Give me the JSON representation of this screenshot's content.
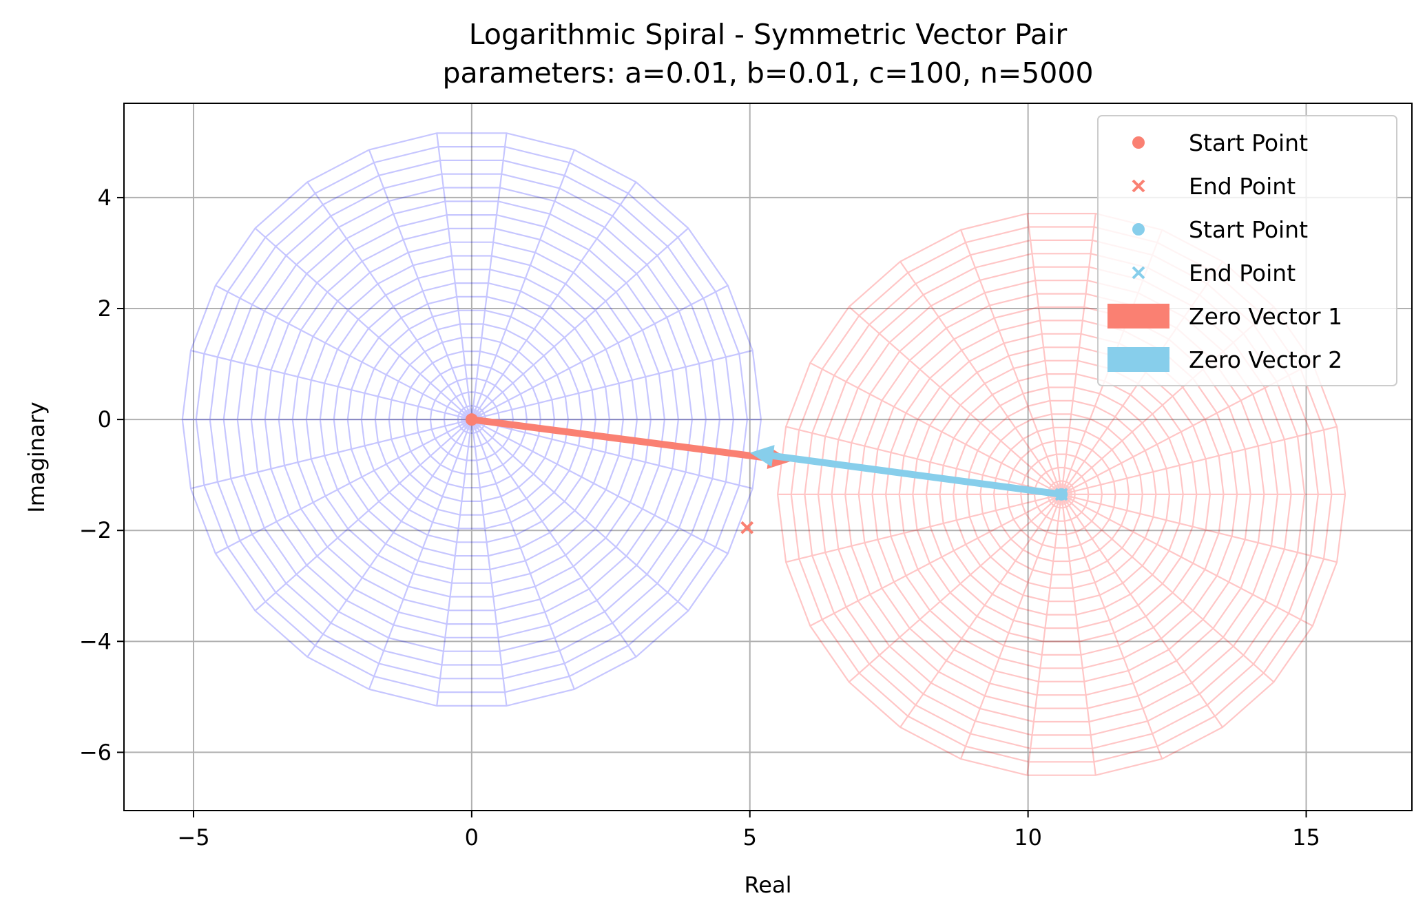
{
  "chart_data": {
    "type": "scatter",
    "title": "Logarithmic Spiral - Symmetric Vector Pair",
    "subtitle": "parameters: a=0.01, b=0.01, c=100, n=5000",
    "xlabel": "Real",
    "ylabel": "Imaginary",
    "xlim": [
      -6.25,
      16.9
    ],
    "ylim": [
      -7.05,
      5.7
    ],
    "xticks": [
      -5,
      0,
      5,
      10,
      15
    ],
    "xtick_labels": [
      "−5",
      "0",
      "5",
      "10",
      "15"
    ],
    "yticks": [
      4,
      2,
      0,
      -2,
      -4,
      -6
    ],
    "ytick_labels": [
      "4",
      "2",
      "0",
      "−2",
      "−4",
      "−6"
    ],
    "grid": true,
    "legend_position": "top-right",
    "spirals": [
      {
        "color": "#0000ff",
        "center": [
          0,
          0
        ],
        "r_start": 0.02,
        "r_end": 5.2,
        "rings": 21,
        "spokes": 26,
        "opacity": 0.22
      },
      {
        "color": "#ff0000",
        "center": [
          10.6,
          -1.35
        ],
        "r_start": 0.02,
        "r_end": 5.1,
        "rings": 21,
        "spokes": 26,
        "opacity": 0.22
      }
    ],
    "series": [
      {
        "name": "Start Point",
        "marker": "circle",
        "color": "#fa8072",
        "x": [
          0
        ],
        "y": [
          0
        ]
      },
      {
        "name": "End Point",
        "marker": "x",
        "color": "#fa8072",
        "x": [
          4.95
        ],
        "y": [
          -1.95
        ]
      },
      {
        "name": "Start Point",
        "marker": "circle",
        "color": "#87ceeb",
        "x": [
          10.6
        ],
        "y": [
          -1.35
        ]
      },
      {
        "name": "End Point",
        "marker": "x",
        "color": "#87ceeb",
        "x": [
          10.6
        ],
        "y": [
          -1.35
        ]
      }
    ],
    "vectors": [
      {
        "name": "Zero Vector 1",
        "color": "#fa8072",
        "from": [
          0,
          0
        ],
        "to": [
          5.75,
          -0.75
        ]
      },
      {
        "name": "Zero Vector 2",
        "color": "#87ceeb",
        "from": [
          10.6,
          -1.35
        ],
        "to": [
          5.0,
          -0.6
        ]
      }
    ]
  }
}
